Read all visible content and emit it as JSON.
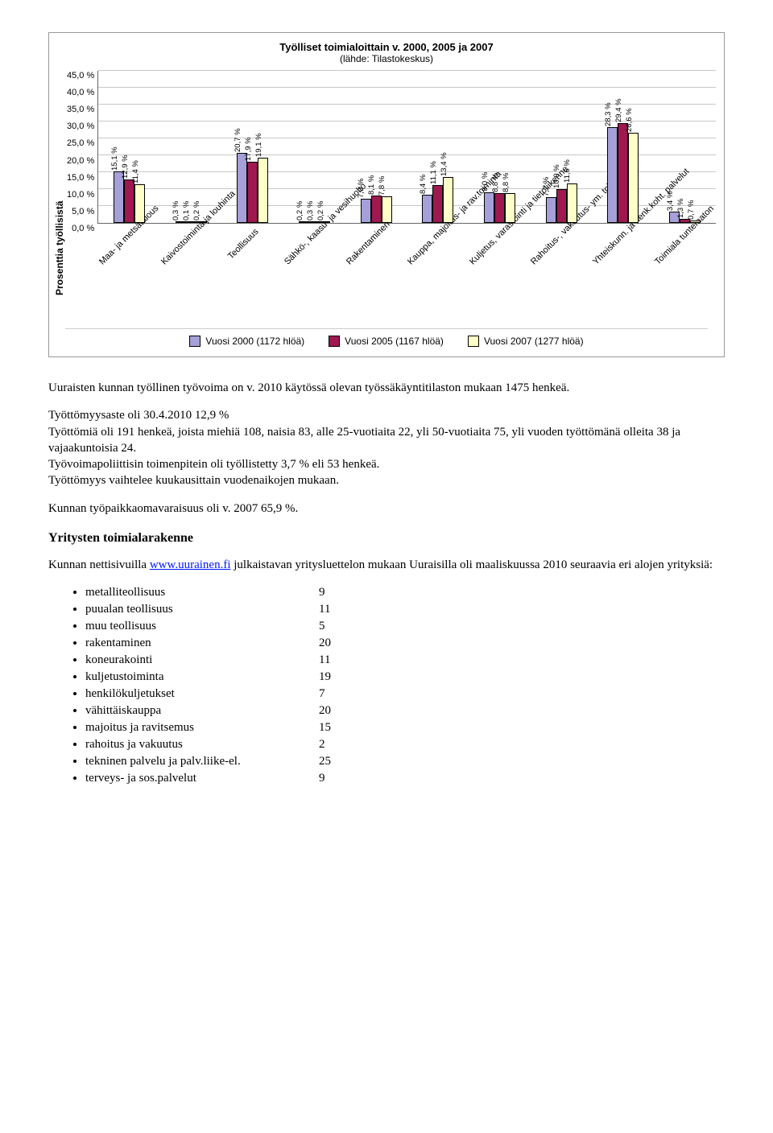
{
  "chart": {
    "type": "bar",
    "title": "Työlliset toimialoittain v. 2000, 2005 ja 2007",
    "subtitle": "(lähde: Tilastokeskus)",
    "ylabel": "Prosenttia työllisistä",
    "ylim_max": 45,
    "ytick_step": 5,
    "yticks": [
      "0,0 %",
      "5,0 %",
      "10,0 %",
      "15,0 %",
      "20,0 %",
      "25,0 %",
      "30,0 %",
      "35,0 %",
      "40,0 %",
      "45,0 %"
    ],
    "series_colors": [
      "#a6a0d8",
      "#a01850",
      "#ffffc8"
    ],
    "gridline_color": "#c8c8c8",
    "categories": [
      {
        "label": "Maa- ja metsätalous",
        "vals": [
          15.1,
          12.9,
          11.4
        ],
        "disp": [
          "15,1 %",
          "12,9 %",
          "11,4 %"
        ]
      },
      {
        "label": "Kaivostoiminta ja louhinta",
        "vals": [
          0.3,
          0.1,
          0.2
        ],
        "disp": [
          "0,3 %",
          "0,1 %",
          "0,2 %"
        ]
      },
      {
        "label": "Teollisuus",
        "vals": [
          20.7,
          17.9,
          19.1
        ],
        "disp": [
          "20,7 %",
          "17,9 %",
          "19,1 %"
        ]
      },
      {
        "label": "Sähkö-, kaasu- ja vesihuolto",
        "vals": [
          0.2,
          0.3,
          0.2
        ],
        "disp": [
          "0,2 %",
          "0,3 %",
          "0,2 %"
        ]
      },
      {
        "label": "Rakentaminen",
        "vals": [
          7.0,
          8.1,
          7.8
        ],
        "disp": [
          "7,0 %",
          "8,1 %",
          "7,8 %"
        ]
      },
      {
        "label": "Kauppa, majoitus- ja rav.toiminta",
        "vals": [
          8.4,
          11.1,
          13.4
        ],
        "disp": [
          "8,4 %",
          "11,1 %",
          "13,4 %"
        ]
      },
      {
        "label": "Kuljetus, varastointi ja tietoliikenne",
        "vals": [
          9.0,
          8.8,
          8.8
        ],
        "disp": [
          "9,0 %",
          "8,8 %",
          "8,8 %"
        ]
      },
      {
        "label": "Rahoitus-, vakuutus- ym. toiminta",
        "vals": [
          7.7,
          10.0,
          11.6
        ],
        "disp": [
          "7,7 %",
          "10,0 %",
          "11,6 %"
        ]
      },
      {
        "label": "Yhteiskunn. ja henk.koht. palvelut",
        "vals": [
          28.3,
          29.4,
          26.6
        ],
        "disp": [
          "28,3 %",
          "29,4 %",
          "26,6 %"
        ]
      },
      {
        "label": "Toimiala tuntematon",
        "vals": [
          3.4,
          1.3,
          0.7
        ],
        "disp": [
          "3,4 %",
          "1,3 %",
          "0,7 %"
        ]
      }
    ],
    "legend": [
      "Vuosi 2000 (1172 hlöä)",
      "Vuosi 2005 (1167 hlöä)",
      "Vuosi 2007 (1277 hlöä)"
    ]
  },
  "paragraphs": {
    "p1": "Uuraisten kunnan työllinen työvoima on v. 2010 käytössä olevan työssäkäyntitilaston mukaan 1475 henkeä.",
    "p2": "Työttömyysaste oli  30.4.2010  12,9 %",
    "p3": "Työttömiä oli 191 henkeä, joista miehiä 108, naisia  83, alle 25-vuotiaita 22, yli 50-vuotiaita 75, yli vuoden työttömänä olleita 38  ja vajaakuntoisia 24.",
    "p4": "Työvoimapoliittisin toimenpitein oli työllistetty 3,7 %  eli 53 henkeä.",
    "p5": "Työttömyys vaihtelee kuukausittain vuodenaikojen mukaan.",
    "p6": "Kunnan työpaikkaomavaraisuus oli v. 2007   65,9 %."
  },
  "section2": {
    "heading": "Yritysten  toimialarakenne",
    "intro_pre": "Kunnan nettisivuilla ",
    "link_text": "www.uurainen.fi",
    "intro_post": "  julkaistavan yritysluettelon mukaan Uuraisilla oli maaliskuussa 2010 seuraavia eri alojen yrityksiä:",
    "sectors": [
      {
        "label": "metalliteollisuus",
        "count": "9"
      },
      {
        "label": "puualan teollisuus",
        "count": "11"
      },
      {
        "label": "muu teollisuus",
        "count": "5"
      },
      {
        "label": "rakentaminen",
        "count": "20"
      },
      {
        "label": "koneurakointi",
        "count": "11"
      },
      {
        "label": "kuljetustoiminta",
        "count": "19"
      },
      {
        "label": "henkilökuljetukset",
        "count": "7"
      },
      {
        "label": "vähittäiskauppa",
        "count": "20"
      },
      {
        "label": "majoitus ja ravitsemus",
        "count": "15"
      },
      {
        "label": "rahoitus ja vakuutus",
        "count": "2"
      },
      {
        "label": "tekninen palvelu ja palv.liike-el.",
        "count": "25"
      },
      {
        "label": "terveys- ja sos.palvelut",
        "count": "9"
      }
    ]
  }
}
